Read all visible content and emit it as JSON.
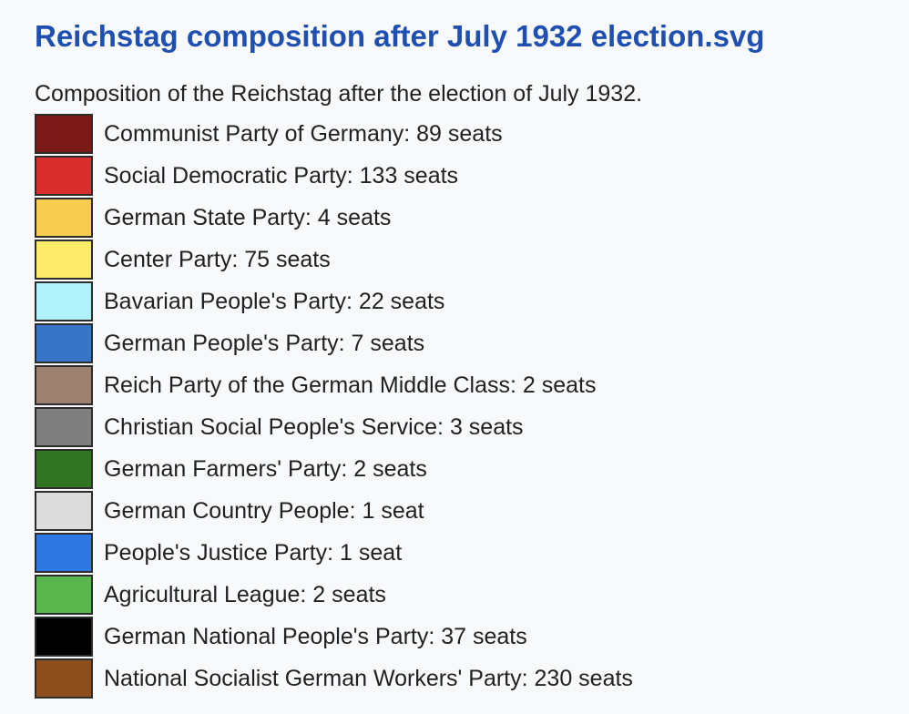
{
  "page": {
    "title": "Reichstag composition after July 1932 election.svg",
    "caption": "Composition of the Reichstag after the election of July 1932."
  },
  "legend": [
    {
      "label": "Communist Party of Germany: 89 seats",
      "color": "#7b1a16"
    },
    {
      "label": "Social Democratic Party: 133 seats",
      "color": "#d92e2e"
    },
    {
      "label": "German State Party: 4 seats",
      "color": "#f7cd4f"
    },
    {
      "label": "Center Party: 75 seats",
      "color": "#fdec6a"
    },
    {
      "label": "Bavarian People's Party: 22 seats",
      "color": "#b0f2fa"
    },
    {
      "label": "German People's Party: 7 seats",
      "color": "#3675c8"
    },
    {
      "label": "Reich Party of the German Middle Class: 2 seats",
      "color": "#9c8170"
    },
    {
      "label": "Christian Social People's Service: 3 seats",
      "color": "#7f7f7f"
    },
    {
      "label": "German Farmers' Party: 2 seats",
      "color": "#307622"
    },
    {
      "label": "German Country People: 1 seat",
      "color": "#dcdcdc"
    },
    {
      "label": "People's Justice Party: 1 seat",
      "color": "#2f78e4"
    },
    {
      "label": "Agricultural League: 2 seats",
      "color": "#5ab74d"
    },
    {
      "label": "German National People's Party: 37 seats",
      "color": "#000000"
    },
    {
      "label": "National Socialist German Workers' Party: 230 seats",
      "color": "#8c4e1c"
    }
  ]
}
